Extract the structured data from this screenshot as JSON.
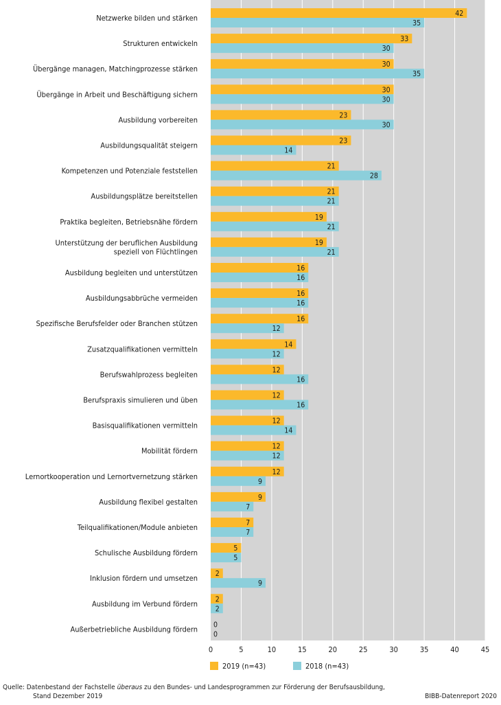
{
  "chart_data": {
    "type": "bar",
    "orientation": "horizontal",
    "categories": [
      [
        "Netzwerke bilden und stärken"
      ],
      [
        "Strukturen entwickeln"
      ],
      [
        "Übergänge managen, Matchingprozesse stärken"
      ],
      [
        "Übergänge in Arbeit und Beschäftigung sichern"
      ],
      [
        "Ausbildung vorbereiten"
      ],
      [
        "Ausbildungsqualität steigern"
      ],
      [
        "Kompetenzen und Potenziale feststellen"
      ],
      [
        "Ausbildungsplätze bereitstellen"
      ],
      [
        "Praktika begleiten, Betriebsnähe fördern"
      ],
      [
        "Unterstützung der beruflichen Ausbildung",
        "speziell von Flüchtlingen"
      ],
      [
        "Ausbildung begleiten und unterstützen"
      ],
      [
        "Ausbildungsabbrüche vermeiden"
      ],
      [
        "Spezifische Berufsfelder oder Branchen stützen"
      ],
      [
        "Zusatzqualifikationen vermitteln"
      ],
      [
        "Berufswahlprozess begleiten"
      ],
      [
        "Berufspraxis simulieren und üben"
      ],
      [
        "Basisqualifikationen vermitteln"
      ],
      [
        "Mobilität fördern"
      ],
      [
        "Lernortkooperation und Lernortvernetzung stärken"
      ],
      [
        "Ausbildung flexibel gestalten"
      ],
      [
        "Teilqualifikationen/Module anbieten"
      ],
      [
        "Schulische Ausbildung fördern"
      ],
      [
        "Inklusion fördern und umsetzen"
      ],
      [
        "Ausbildung im Verbund fördern"
      ],
      [
        "Außerbetriebliche Ausbildung fördern"
      ]
    ],
    "series": [
      {
        "name": "2019 (n=43)",
        "color": "#fbb92b",
        "values": [
          42,
          33,
          30,
          30,
          23,
          23,
          21,
          21,
          19,
          19,
          16,
          16,
          16,
          14,
          12,
          12,
          12,
          12,
          12,
          9,
          7,
          5,
          2,
          2,
          0
        ]
      },
      {
        "name": "2018 (n=43)",
        "color": "#8ccfdb",
        "values": [
          35,
          30,
          35,
          30,
          30,
          14,
          28,
          21,
          21,
          21,
          16,
          16,
          12,
          12,
          16,
          16,
          14,
          12,
          9,
          7,
          7,
          5,
          9,
          2,
          0
        ]
      }
    ],
    "xlim": [
      0,
      45
    ],
    "xticks": [
      "0",
      "5",
      "10",
      "15",
      "20",
      "25",
      "30",
      "35",
      "40",
      "45"
    ],
    "grid": true
  },
  "footer": {
    "source_prefix": "Quelle: Datenbestand der Fachstelle ",
    "source_italic": "überaus",
    "source_suffix": " zu den Bundes- und Landesprogrammen zur Förderung der Berufsausbildung,",
    "source_line2": "Stand Dezember 2019",
    "publisher": "BIBB-Datenreport 2020"
  }
}
